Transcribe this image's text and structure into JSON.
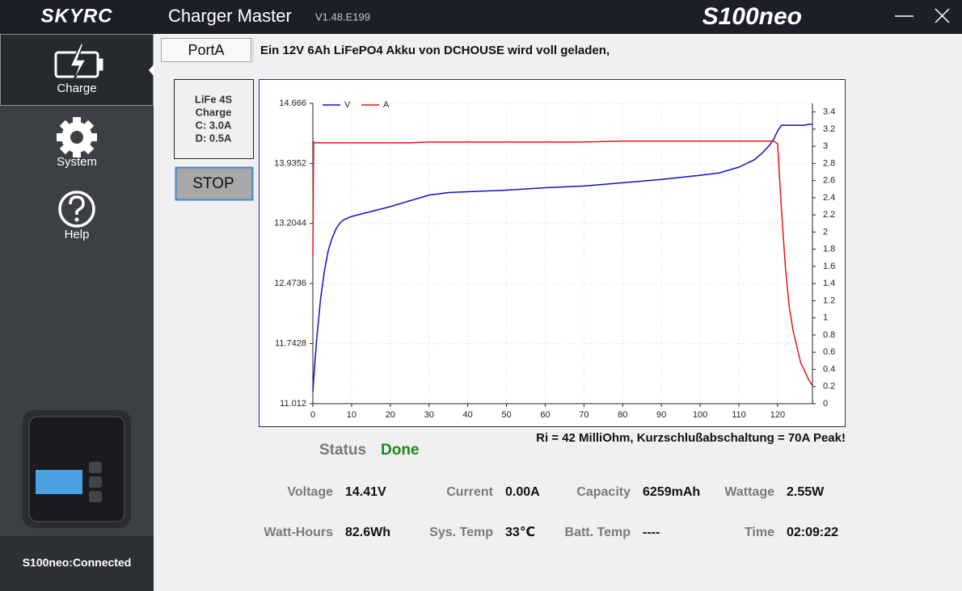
{
  "header": {
    "logo": "SKYRC",
    "app_name": "Charger Master",
    "version": "V1.48.E199",
    "model": "S100neo"
  },
  "sidebar": {
    "items": [
      "Charge",
      "System",
      "Help"
    ],
    "status": "S100neo:Connected"
  },
  "port_tab": "PortA",
  "description": "Ein 12V 6Ah LiFePO4 Akku von DCHOUSE wird voll geladen,",
  "info_box": {
    "lines": [
      "LiFe 4S",
      "Charge",
      "C: 3.0A",
      "D: 0.5A"
    ]
  },
  "stop_button": "STOP",
  "chart_data": {
    "type": "line",
    "x": [
      0,
      0.2,
      0.5,
      1,
      2,
      3,
      4,
      5,
      6,
      7,
      8,
      10,
      15,
      20,
      25,
      30,
      35,
      40,
      50,
      60,
      70,
      80,
      90,
      100,
      105,
      110,
      114,
      116,
      118,
      119,
      120,
      121,
      122,
      123,
      124,
      125,
      126,
      127,
      128,
      129
    ],
    "series": [
      {
        "name": "V",
        "color": "#1010c8",
        "axis": "y",
        "values": [
          11.16,
          11.3,
          11.5,
          11.8,
          12.29,
          12.63,
          12.88,
          13.03,
          13.14,
          13.21,
          13.25,
          13.29,
          13.35,
          13.41,
          13.48,
          13.55,
          13.58,
          13.59,
          13.61,
          13.64,
          13.66,
          13.7,
          13.74,
          13.79,
          13.82,
          13.89,
          13.98,
          14.06,
          14.16,
          14.23,
          14.33,
          14.4,
          14.4,
          14.4,
          14.4,
          14.4,
          14.4,
          14.4,
          14.41,
          14.41
        ]
      },
      {
        "name": "A",
        "color": "#e01818",
        "axis": "y2",
        "values": [
          1.71,
          3.05,
          3.04,
          3.04,
          3.04,
          3.04,
          3.04,
          3.04,
          3.04,
          3.04,
          3.04,
          3.04,
          3.04,
          3.04,
          3.04,
          3.05,
          3.05,
          3.05,
          3.05,
          3.05,
          3.05,
          3.06,
          3.06,
          3.06,
          3.06,
          3.06,
          3.06,
          3.06,
          3.06,
          3.06,
          3.03,
          2.26,
          1.6,
          1.13,
          0.85,
          0.66,
          0.47,
          0.38,
          0.28,
          0.21
        ]
      }
    ],
    "xlim": [
      0,
      129
    ],
    "xticks": [
      0,
      10,
      20,
      30,
      40,
      50,
      60,
      70,
      80,
      90,
      100,
      110,
      120
    ],
    "ylim": [
      11.012,
      14.666
    ],
    "yticks": [
      11.012,
      11.7428,
      12.4736,
      13.2044,
      13.9352,
      14.666
    ],
    "y2lim": [
      0,
      3.5
    ],
    "y2ticks": [
      0,
      0.2,
      0.4,
      0.6,
      0.8,
      1,
      1.2,
      1.4,
      1.6,
      1.8,
      2,
      2.2,
      2.4,
      2.6,
      2.8,
      3,
      3.2,
      3.4
    ],
    "grid": true,
    "legend": "top-left"
  },
  "ri_note": "Ri = 42 MilliOhm, Kurzschlußabschaltung = 70A Peak!",
  "status": {
    "label": "Status",
    "value": "Done"
  },
  "fields": [
    {
      "label": "Voltage",
      "value": "14.41V"
    },
    {
      "label": "Current",
      "value": "0.00A"
    },
    {
      "label": "Capacity",
      "value": "6259mAh"
    },
    {
      "label": "Wattage",
      "value": "2.55W"
    },
    {
      "label": "Watt-Hours",
      "value": "82.6Wh"
    },
    {
      "label": "Sys. Temp",
      "value": "33℃"
    },
    {
      "label": "Batt. Temp",
      "value": "----"
    },
    {
      "label": "Time",
      "value": "02:09:22"
    }
  ]
}
